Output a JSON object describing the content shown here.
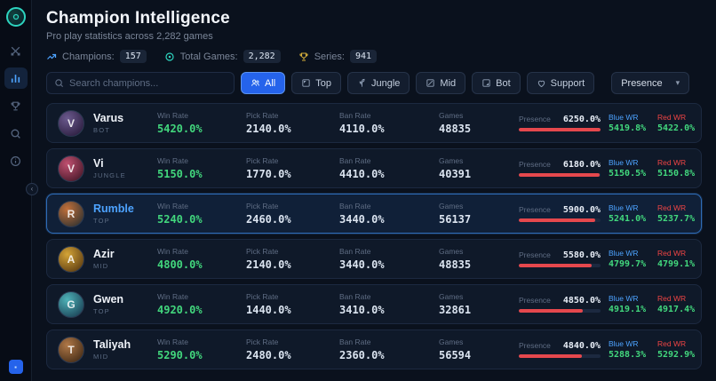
{
  "header": {
    "title": "Champion Intelligence",
    "subtitle": "Pro play statistics across 2,282 games"
  },
  "sidebar": {
    "items": [
      {
        "icon": "swords-icon",
        "active": false
      },
      {
        "icon": "bar-chart-icon",
        "active": true
      },
      {
        "icon": "trophy-icon",
        "active": false
      },
      {
        "icon": "search-icon",
        "active": false
      },
      {
        "icon": "info-icon",
        "active": false
      }
    ]
  },
  "stats": [
    {
      "icon": "trend-icon",
      "label": "Champions:",
      "value": "157"
    },
    {
      "icon": "target-icon",
      "label": "Total Games:",
      "value": "2,282"
    },
    {
      "icon": "trophy-icon",
      "label": "Series:",
      "value": "941"
    }
  ],
  "search": {
    "placeholder": "Search champions..."
  },
  "filters": [
    {
      "label": "All",
      "icon": "users-icon",
      "active": true
    },
    {
      "label": "Top",
      "icon": "role-top-icon",
      "active": false
    },
    {
      "label": "Jungle",
      "icon": "role-jungle-icon",
      "active": false
    },
    {
      "label": "Mid",
      "icon": "role-mid-icon",
      "active": false
    },
    {
      "label": "Bot",
      "icon": "role-bot-icon",
      "active": false
    },
    {
      "label": "Support",
      "icon": "role-support-icon",
      "active": false
    }
  ],
  "sort": {
    "selected": "Presence"
  },
  "icons": {
    "chevron_down": "▾"
  },
  "columns": {
    "win": "Win Rate",
    "pick": "Pick Rate",
    "ban": "Ban Rate",
    "games": "Games",
    "presence": "Presence",
    "blue": "Blue WR",
    "red": "Red WR"
  },
  "colors": {
    "accent_blue": "#2563eb",
    "green": "#42d77d",
    "bar_red": "#e5484d",
    "blue_label": "#4da3ff",
    "red_label": "#ef4444"
  },
  "rows": [
    {
      "name": "Varus",
      "role": "BOT",
      "win_rate": "5420.0%",
      "pick_rate": "2140.0%",
      "ban_rate": "4110.0%",
      "games": "48835",
      "presence": "6250.0%",
      "blue_wr": "5419.8%",
      "red_wr": "5422.0%",
      "highlighted": false,
      "bar_pct": 100,
      "avatar": {
        "initial": "V",
        "from": "#6b5a8e",
        "to": "#221433"
      }
    },
    {
      "name": "Vi",
      "role": "JUNGLE",
      "win_rate": "5150.0%",
      "pick_rate": "1770.0%",
      "ban_rate": "4410.0%",
      "games": "40391",
      "presence": "6180.0%",
      "blue_wr": "5150.5%",
      "red_wr": "5150.8%",
      "highlighted": false,
      "bar_pct": 99,
      "avatar": {
        "initial": "V",
        "from": "#c05070",
        "to": "#35101f"
      }
    },
    {
      "name": "Rumble",
      "role": "TOP",
      "win_rate": "5240.0%",
      "pick_rate": "2460.0%",
      "ban_rate": "3440.0%",
      "games": "56137",
      "presence": "5900.0%",
      "blue_wr": "5241.0%",
      "red_wr": "5237.7%",
      "highlighted": true,
      "bar_pct": 94,
      "avatar": {
        "initial": "R",
        "from": "#c2703a",
        "to": "#1d2a30"
      }
    },
    {
      "name": "Azir",
      "role": "MID",
      "win_rate": "4800.0%",
      "pick_rate": "2140.0%",
      "ban_rate": "3440.0%",
      "games": "48835",
      "presence": "5580.0%",
      "blue_wr": "4799.7%",
      "red_wr": "4799.1%",
      "highlighted": false,
      "bar_pct": 89,
      "avatar": {
        "initial": "A",
        "from": "#d4a437",
        "to": "#4a2c0c"
      }
    },
    {
      "name": "Gwen",
      "role": "TOP",
      "win_rate": "4920.0%",
      "pick_rate": "1440.0%",
      "ban_rate": "3410.0%",
      "games": "32861",
      "presence": "4850.0%",
      "blue_wr": "4919.1%",
      "red_wr": "4917.4%",
      "highlighted": false,
      "bar_pct": 78,
      "avatar": {
        "initial": "G",
        "from": "#4fb3b8",
        "to": "#123047"
      }
    },
    {
      "name": "Taliyah",
      "role": "MID",
      "win_rate": "5290.0%",
      "pick_rate": "2480.0%",
      "ban_rate": "2360.0%",
      "games": "56594",
      "presence": "4840.0%",
      "blue_wr": "5288.3%",
      "red_wr": "5292.9%",
      "highlighted": false,
      "bar_pct": 77,
      "avatar": {
        "initial": "T",
        "from": "#b07848",
        "to": "#33200f"
      }
    }
  ]
}
